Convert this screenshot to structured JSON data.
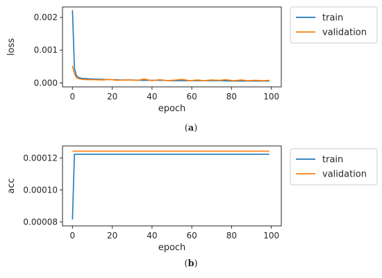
{
  "chart_data": [
    {
      "type": "line",
      "xlabel": "epoch",
      "ylabel": "loss",
      "xlim": [
        -5,
        105
      ],
      "ylim": [
        -0.00012,
        0.00232
      ],
      "xticks": [
        0,
        20,
        40,
        60,
        80,
        100
      ],
      "yticks": [
        0.0,
        0.001,
        0.002
      ],
      "ytick_labels": [
        "0.000",
        "0.001",
        "0.002"
      ],
      "grid": false,
      "legend_position": "outside-right",
      "caption_letter": "a",
      "series": [
        {
          "name": "train",
          "color": "#1f77b4",
          "x": [
            0,
            1,
            2,
            3,
            4,
            5,
            7,
            10,
            15,
            20,
            25,
            30,
            35,
            40,
            45,
            50,
            55,
            60,
            65,
            70,
            75,
            80,
            85,
            90,
            95,
            99
          ],
          "y": [
            0.00222,
            0.00045,
            0.00022,
            0.00017,
            0.00015,
            0.00014,
            0.00013,
            0.00012,
            0.00011,
            0.0001,
            9e-05,
            9e-05,
            8e-05,
            8e-05,
            8e-05,
            7e-05,
            7e-05,
            7e-05,
            7e-05,
            7e-05,
            7e-05,
            6e-05,
            6e-05,
            6e-05,
            6e-05,
            6e-05
          ]
        },
        {
          "name": "validation",
          "color": "#ff7f0e",
          "x": [
            0,
            1,
            2,
            3,
            4,
            5,
            7,
            10,
            15,
            19,
            22,
            28,
            33,
            36,
            40,
            44,
            48,
            52,
            55,
            59,
            63,
            66,
            70,
            74,
            77,
            81,
            85,
            88,
            92,
            96,
            99
          ],
          "y": [
            0.00052,
            0.00028,
            0.00016,
            0.00013,
            0.00012,
            0.00011,
            0.0001,
            0.0001,
            9e-05,
            0.00011,
            8e-05,
            9e-05,
            8e-05,
            0.00012,
            7e-05,
            0.0001,
            7e-05,
            9e-05,
            0.00011,
            7e-05,
            9e-05,
            7e-05,
            9e-05,
            8e-05,
            0.0001,
            7e-05,
            9e-05,
            7e-05,
            8e-05,
            7e-05,
            8e-05
          ]
        }
      ]
    },
    {
      "type": "line",
      "xlabel": "epoch",
      "ylabel": "acc",
      "xlim": [
        -5,
        105
      ],
      "ylim": [
        7.75e-05,
        0.0001275
      ],
      "xticks": [
        0,
        20,
        40,
        60,
        80,
        100
      ],
      "yticks": [
        8e-05,
        0.0001,
        0.00012
      ],
      "ytick_labels": [
        "0.00008",
        "0.00010",
        "0.00012"
      ],
      "grid": false,
      "legend_position": "outside-right",
      "caption_letter": "b",
      "series": [
        {
          "name": "train",
          "color": "#1f77b4",
          "x": [
            0,
            1,
            99
          ],
          "y": [
            8.15e-05,
            0.0001223,
            0.0001223
          ]
        },
        {
          "name": "validation",
          "color": "#ff7f0e",
          "x": [
            0,
            99
          ],
          "y": [
            0.0001242,
            0.0001242
          ]
        }
      ]
    }
  ]
}
